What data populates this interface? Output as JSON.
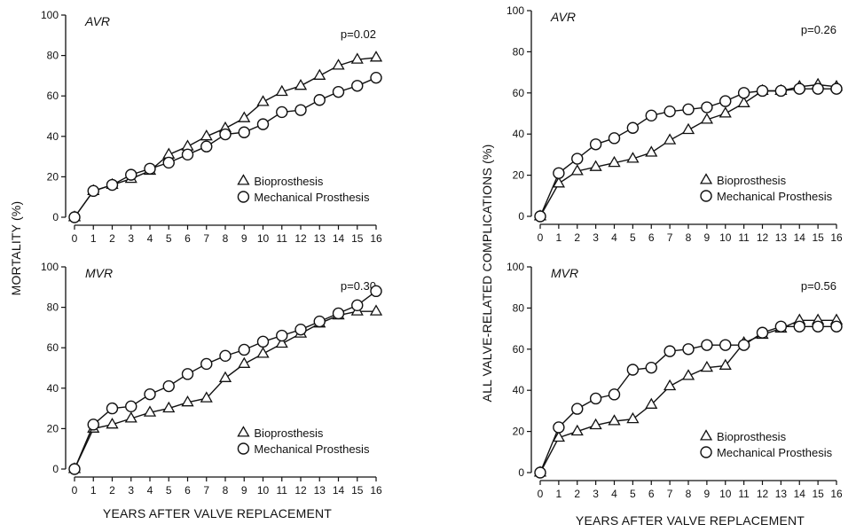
{
  "figure": {
    "shared_ylabel_left": "MORTALITY (%)",
    "shared_ylabel_right": "ALL VALVE-RELATED COMPLICATIONS (%)",
    "shared_xlabel": "YEARS AFTER VALVE REPLACEMENT"
  },
  "chart_data": [
    {
      "type": "line",
      "title": "AVR",
      "annotation": "p=0.02",
      "ylabel": "MORTALITY (%)",
      "xlabel": "",
      "xlim": [
        0,
        16
      ],
      "ylim": [
        0,
        100
      ],
      "xticks": [
        0,
        1,
        2,
        3,
        4,
        5,
        6,
        7,
        8,
        9,
        10,
        11,
        12,
        13,
        14,
        15,
        16
      ],
      "yticks": [
        0,
        20,
        40,
        60,
        80,
        100
      ],
      "legend": [
        "Bioprosthesis",
        "Mechanical Prosthesis"
      ],
      "series": [
        {
          "name": "Bioprosthesis",
          "marker": "triangle",
          "x": [
            0,
            1,
            2,
            3,
            4,
            5,
            6,
            7,
            8,
            9,
            10,
            11,
            12,
            13,
            14,
            15,
            16
          ],
          "y": [
            0,
            13,
            16,
            19,
            23,
            31,
            35,
            40,
            44,
            49,
            57,
            62,
            65,
            70,
            75,
            78,
            79
          ]
        },
        {
          "name": "Mechanical Prosthesis",
          "marker": "circle",
          "x": [
            0,
            1,
            2,
            3,
            4,
            5,
            6,
            7,
            8,
            9,
            10,
            11,
            12,
            13,
            14,
            15,
            16
          ],
          "y": [
            0,
            13,
            16,
            21,
            24,
            27,
            31,
            35,
            41,
            42,
            46,
            52,
            53,
            58,
            62,
            65,
            69
          ]
        }
      ]
    },
    {
      "type": "line",
      "title": "MVR",
      "annotation": "p=0.30",
      "ylabel": "MORTALITY (%)",
      "xlabel": "YEARS AFTER VALVE REPLACEMENT",
      "xlim": [
        0,
        16
      ],
      "ylim": [
        0,
        100
      ],
      "xticks": [
        0,
        1,
        2,
        3,
        4,
        5,
        6,
        7,
        8,
        9,
        10,
        11,
        12,
        13,
        14,
        15,
        16
      ],
      "yticks": [
        0,
        20,
        40,
        60,
        80,
        100
      ],
      "legend": [
        "Bioprosthesis",
        "Mechanical Prosthesis"
      ],
      "series": [
        {
          "name": "Bioprosthesis",
          "marker": "triangle",
          "x": [
            0,
            1,
            2,
            3,
            4,
            5,
            6,
            7,
            8,
            9,
            10,
            11,
            12,
            13,
            14,
            15,
            16
          ],
          "y": [
            0,
            20,
            22,
            25,
            28,
            30,
            33,
            35,
            45,
            52,
            57,
            62,
            67,
            72,
            76,
            78,
            78
          ]
        },
        {
          "name": "Mechanical Prosthesis",
          "marker": "circle",
          "x": [
            0,
            1,
            2,
            3,
            4,
            5,
            6,
            7,
            8,
            9,
            10,
            11,
            12,
            13,
            14,
            15,
            16
          ],
          "y": [
            0,
            22,
            30,
            31,
            37,
            41,
            47,
            52,
            56,
            59,
            63,
            66,
            69,
            73,
            77,
            81,
            88
          ]
        }
      ]
    },
    {
      "type": "line",
      "title": "AVR",
      "annotation": "p=0.26",
      "ylabel": "ALL VALVE-RELATED COMPLICATIONS (%)",
      "xlabel": "",
      "xlim": [
        0,
        16
      ],
      "ylim": [
        0,
        100
      ],
      "xticks": [
        0,
        1,
        2,
        3,
        4,
        5,
        6,
        7,
        8,
        9,
        10,
        11,
        12,
        13,
        14,
        15,
        16
      ],
      "yticks": [
        0,
        20,
        40,
        60,
        80,
        100
      ],
      "legend": [
        "Bioprosthesis",
        "Mechanical Prosthesis"
      ],
      "series": [
        {
          "name": "Bioprosthesis",
          "marker": "triangle",
          "x": [
            0,
            1,
            2,
            3,
            4,
            5,
            6,
            7,
            8,
            9,
            10,
            11,
            12,
            13,
            14,
            15,
            16
          ],
          "y": [
            0,
            16,
            22,
            24,
            26,
            28,
            31,
            37,
            42,
            47,
            50,
            55,
            61,
            61,
            63,
            64,
            63
          ]
        },
        {
          "name": "Mechanical Prosthesis",
          "marker": "circle",
          "x": [
            0,
            1,
            2,
            3,
            4,
            5,
            6,
            7,
            8,
            9,
            10,
            11,
            12,
            13,
            14,
            15,
            16
          ],
          "y": [
            0,
            21,
            28,
            35,
            38,
            43,
            49,
            51,
            52,
            53,
            56,
            60,
            61,
            61,
            62,
            62,
            62
          ]
        }
      ]
    },
    {
      "type": "line",
      "title": "MVR",
      "annotation": "p=0.56",
      "ylabel": "ALL VALVE-RELATED COMPLICATIONS (%)",
      "xlabel": "YEARS AFTER VALVE REPLACEMENT",
      "xlim": [
        0,
        16
      ],
      "ylim": [
        0,
        100
      ],
      "xticks": [
        0,
        1,
        2,
        3,
        4,
        5,
        6,
        7,
        8,
        9,
        10,
        11,
        12,
        13,
        14,
        15,
        16
      ],
      "yticks": [
        0,
        20,
        40,
        60,
        80,
        100
      ],
      "legend": [
        "Bioprosthesis",
        "Mechanical Prosthesis"
      ],
      "series": [
        {
          "name": "Bioprosthesis",
          "marker": "triangle",
          "x": [
            0,
            1,
            2,
            3,
            4,
            5,
            6,
            7,
            8,
            9,
            10,
            11,
            12,
            13,
            14,
            15,
            16
          ],
          "y": [
            0,
            17,
            20,
            23,
            25,
            26,
            33,
            42,
            47,
            51,
            52,
            63,
            67,
            70,
            74,
            74,
            74
          ]
        },
        {
          "name": "Mechanical Prosthesis",
          "marker": "circle",
          "x": [
            0,
            1,
            2,
            3,
            4,
            5,
            6,
            7,
            8,
            9,
            10,
            11,
            12,
            13,
            14,
            15,
            16
          ],
          "y": [
            0,
            22,
            31,
            36,
            38,
            50,
            51,
            59,
            60,
            62,
            62,
            62,
            68,
            71,
            71,
            71,
            71
          ]
        }
      ]
    }
  ]
}
